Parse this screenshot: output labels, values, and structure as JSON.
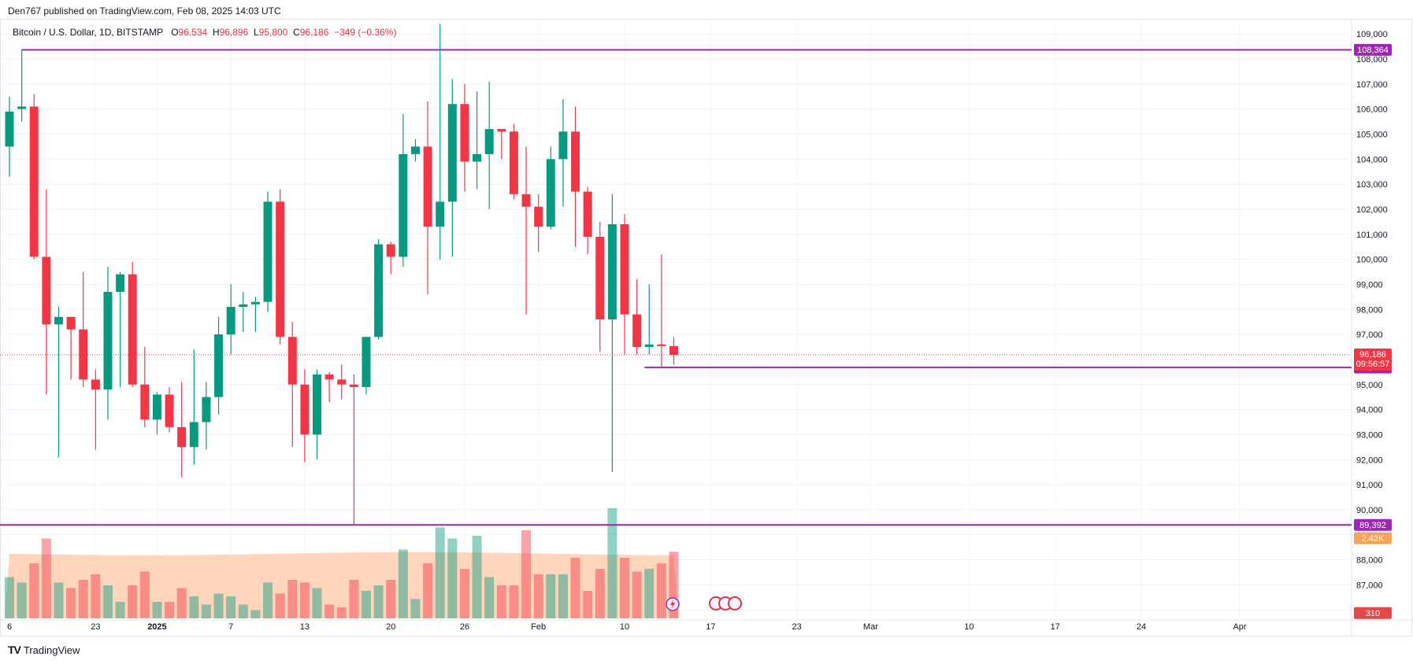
{
  "header": {
    "published": "Den767 published on TradingView.com, Feb 08, 2025 14:03 UTC"
  },
  "legend": {
    "symbol": "Bitcoin / U.S. Dollar, 1D, BITSTAMP",
    "o_label": "O",
    "o": "96,534",
    "h_label": "H",
    "h": "96,896",
    "l_label": "L",
    "l": "95,800",
    "c_label": "C",
    "c": "96,186",
    "chg": "−349 (−0.36%)"
  },
  "footer": {
    "brand": "TradingView"
  },
  "colors": {
    "up": "#089981",
    "down": "#f23645",
    "level": "#9c27b0",
    "price_tag": "#f23645",
    "vol_tag": "#f7a35c",
    "vol_tag2": "#e24a4a",
    "up_vol": "#b9b08c",
    "down_vol": "#f7a077",
    "vol_area": "#ffcfb0"
  },
  "chart_data": {
    "type": "candlestick",
    "ylim": [
      85600,
      109600
    ],
    "y_ticks": [
      86000,
      87000,
      88000,
      89000,
      90000,
      91000,
      92000,
      93000,
      94000,
      95000,
      96000,
      97000,
      98000,
      99000,
      100000,
      101000,
      102000,
      103000,
      104000,
      105000,
      106000,
      107000,
      108000,
      109000
    ],
    "y_tick_labels": [
      "86,000",
      "87,000",
      "88,000",
      "89,000",
      "90,000",
      "91,000",
      "92,000",
      "93,000",
      "94,000",
      "95,000",
      "96,000",
      "97,000",
      "98,000",
      "99,000",
      "100,000",
      "101,000",
      "102,000",
      "103,000",
      "104,000",
      "105,000",
      "106,000",
      "107,000",
      "108,000",
      "109,000"
    ],
    "x_labels": [
      "6",
      "23",
      "2025",
      "7",
      "13",
      "20",
      "26",
      "Feb",
      "10",
      "17",
      "23",
      "Mar",
      "10",
      "17",
      "24",
      "Apr"
    ],
    "x_label_day_index": [
      0,
      7,
      12,
      18,
      24,
      31,
      37,
      43,
      50,
      57,
      64,
      70,
      78,
      85,
      92,
      100
    ],
    "candles": [
      [
        104500,
        106500,
        103300,
        105900,
        1.5
      ],
      [
        106000,
        108364,
        105500,
        106100,
        1.3
      ],
      [
        106100,
        106600,
        100000,
        100100,
        2.0
      ],
      [
        100100,
        102800,
        94600,
        97400,
        2.9
      ],
      [
        97400,
        98100,
        92100,
        97700,
        1.3
      ],
      [
        97700,
        97700,
        95200,
        97200,
        1.1
      ],
      [
        97200,
        99500,
        94900,
        95200,
        1.4
      ],
      [
        95200,
        95600,
        92400,
        94800,
        1.6
      ],
      [
        94800,
        99700,
        93600,
        98700,
        1.2
      ],
      [
        98700,
        99500,
        94900,
        99400,
        0.6
      ],
      [
        99400,
        99900,
        94900,
        95000,
        1.2
      ],
      [
        95000,
        96500,
        93300,
        93600,
        1.7
      ],
      [
        93600,
        94700,
        93000,
        94600,
        0.6
      ],
      [
        94600,
        94900,
        93100,
        93300,
        0.6
      ],
      [
        93300,
        95100,
        91300,
        92500,
        1.1
      ],
      [
        92500,
        96400,
        91800,
        93500,
        0.8
      ],
      [
        93500,
        95100,
        92400,
        94500,
        0.5
      ],
      [
        94500,
        97700,
        93800,
        97000,
        0.9
      ],
      [
        97000,
        99000,
        96200,
        98100,
        0.8
      ],
      [
        98100,
        98700,
        97100,
        98200,
        0.5
      ],
      [
        98200,
        98500,
        97100,
        98300,
        0.3
      ],
      [
        98300,
        102700,
        97900,
        102300,
        1.3
      ],
      [
        102300,
        102800,
        96600,
        96900,
        0.9
      ],
      [
        96900,
        97500,
        92500,
        95000,
        1.4
      ],
      [
        95000,
        95600,
        91900,
        93000,
        1.3
      ],
      [
        93000,
        95600,
        92000,
        95400,
        1.1
      ],
      [
        95400,
        95500,
        94300,
        95200,
        0.5
      ],
      [
        95200,
        95800,
        94400,
        95000,
        0.4
      ],
      [
        95000,
        95400,
        89392,
        94900,
        1.4
      ],
      [
        94900,
        96900,
        94600,
        96900,
        1.0
      ],
      [
        96900,
        100800,
        96800,
        100600,
        1.2
      ],
      [
        100600,
        100700,
        99400,
        100100,
        1.4
      ],
      [
        100100,
        105800,
        99700,
        104200,
        2.5
      ],
      [
        104200,
        104800,
        103900,
        104500,
        0.7
      ],
      [
        104500,
        106300,
        98600,
        101300,
        2.0
      ],
      [
        101300,
        109400,
        100000,
        102300,
        3.3
      ],
      [
        102300,
        107200,
        100100,
        106200,
        2.9
      ],
      [
        106200,
        107000,
        102700,
        103900,
        1.8
      ],
      [
        103900,
        106700,
        102800,
        104200,
        3.0
      ],
      [
        104200,
        107100,
        102000,
        105200,
        1.5
      ],
      [
        105200,
        105200,
        104000,
        105100,
        1.2
      ],
      [
        105100,
        105400,
        102400,
        102600,
        1.2
      ],
      [
        102600,
        104500,
        97800,
        102100,
        3.2
      ],
      [
        102100,
        102600,
        100300,
        101300,
        1.6
      ],
      [
        101300,
        104500,
        101200,
        104000,
        1.6
      ],
      [
        104000,
        106400,
        102100,
        105100,
        1.6
      ],
      [
        105100,
        106100,
        100500,
        102700,
        2.2
      ],
      [
        102700,
        102900,
        100200,
        100900,
        1.0
      ],
      [
        100900,
        101500,
        96300,
        97600,
        1.8
      ],
      [
        97600,
        102600,
        91500,
        101400,
        4.0
      ],
      [
        101400,
        101800,
        96200,
        97800,
        2.2
      ],
      [
        97800,
        99200,
        96200,
        96500,
        1.7
      ],
      [
        96500,
        99000,
        96200,
        96600,
        1.8
      ],
      [
        96600,
        100200,
        95678,
        96534,
        2.0
      ],
      [
        96534,
        96896,
        95800,
        96186,
        2.42
      ]
    ],
    "levels": [
      {
        "price": 108364,
        "label": "108,364"
      },
      {
        "price": 95678,
        "label": "95,678"
      },
      {
        "price": 89392,
        "label": "89,392"
      }
    ],
    "last_price": {
      "price": 96186,
      "label": "96,186",
      "countdown": "09:56:57"
    },
    "volume_label": "2.42K",
    "volume_label2": "310"
  }
}
